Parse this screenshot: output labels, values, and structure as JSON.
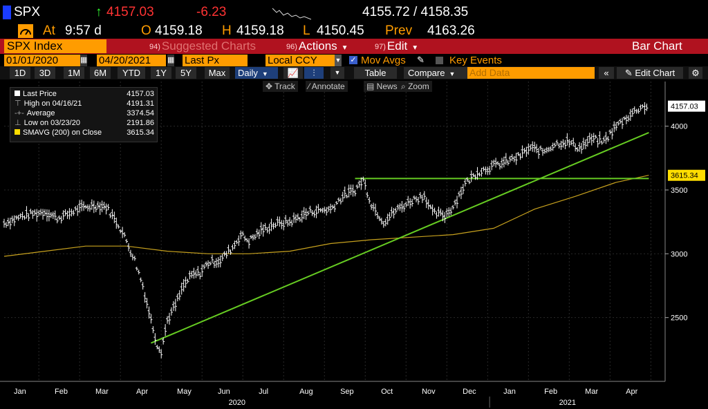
{
  "header": {
    "ticker": "SPX",
    "arrow": "↑",
    "last": "4157.03",
    "change": "-6.23",
    "bid_ask": "4155.72 / 4158.35",
    "time_label": "At",
    "time": "9:57 d",
    "open_label": "O",
    "open": "4159.18",
    "high_label": "H",
    "high": "4159.18",
    "low_label": "L",
    "low": "4150.45",
    "prev_label": "Prev",
    "prev": "4163.26"
  },
  "funcbar": {
    "security": "SPX Index",
    "suggested_num": "94)",
    "suggested": "Suggested Charts",
    "actions_num": "96)",
    "actions": "Actions",
    "edit_num": "97)",
    "edit": "Edit",
    "chart_type": "Bar Chart"
  },
  "params": {
    "start_date": "01/01/2020",
    "end_date": "04/20/2021",
    "price_field": "Last Px",
    "currency": "Local CCY",
    "mov_avgs": "Mov Avgs",
    "key_events": "Key Events"
  },
  "toolbar": {
    "periods": [
      "1D",
      "3D",
      "1M",
      "6M",
      "YTD",
      "1Y",
      "5Y",
      "Max"
    ],
    "frequency": "Daily",
    "table": "Table",
    "compare": "Compare",
    "add_data_placeholder": "Add Data",
    "edit_chart": "Edit Chart"
  },
  "tools": {
    "track": "Track",
    "annotate": "Annotate",
    "news": "News",
    "zoom": "Zoom"
  },
  "legend": [
    {
      "label": "Last Price",
      "value": "4157.03"
    },
    {
      "label": "High on 04/16/21",
      "value": "4191.31"
    },
    {
      "label": "Average",
      "value": "3374.54"
    },
    {
      "label": "Low on 03/23/20",
      "value": "2191.86"
    },
    {
      "label": "SMAVG (200)  on Close",
      "value": "3615.34"
    }
  ],
  "colors": {
    "price": "#ffffff",
    "sma": "#c8a21e",
    "trendline": "#66cc22",
    "orange": "#ff9c00",
    "red": "#b0121f",
    "change_red": "#ff3333",
    "up_green": "#33ff33"
  },
  "chart_data": {
    "type": "line",
    "title": "",
    "xlabel": "",
    "ylabel": "",
    "ylim": [
      2000,
      4350
    ],
    "y_ticks": [
      "2500",
      "3000",
      "3500",
      "4000"
    ],
    "x_months": [
      "Jan",
      "Feb",
      "Mar",
      "Apr",
      "May",
      "Jun",
      "Jul",
      "Aug",
      "Sep",
      "Oct",
      "Nov",
      "Dec",
      "Jan",
      "Feb",
      "Mar",
      "Apr"
    ],
    "x_years": [
      "2020",
      "2021"
    ],
    "last_price_tag": "4157.03",
    "sma_tag": "3615.34",
    "series": [
      {
        "name": "Last Price",
        "points": [
          [
            0,
            3240
          ],
          [
            0.5,
            3300
          ],
          [
            1,
            3330
          ],
          [
            1.3,
            3280
          ],
          [
            1.5,
            3300
          ],
          [
            1.8,
            3350
          ],
          [
            2.2,
            3380
          ],
          [
            2.5,
            3370
          ],
          [
            2.8,
            3230
          ],
          [
            3.0,
            3100
          ],
          [
            3.2,
            2950
          ],
          [
            3.4,
            2750
          ],
          [
            3.6,
            2480
          ],
          [
            3.75,
            2290
          ],
          [
            3.85,
            2240
          ],
          [
            4.0,
            2480
          ],
          [
            4.2,
            2600
          ],
          [
            4.4,
            2750
          ],
          [
            4.6,
            2830
          ],
          [
            4.8,
            2850
          ],
          [
            5.0,
            2930
          ],
          [
            5.3,
            2950
          ],
          [
            5.6,
            3050
          ],
          [
            5.8,
            3150
          ],
          [
            6.0,
            3100
          ],
          [
            6.3,
            3180
          ],
          [
            6.6,
            3230
          ],
          [
            7.0,
            3250
          ],
          [
            7.5,
            3330
          ],
          [
            8.0,
            3350
          ],
          [
            8.3,
            3450
          ],
          [
            8.6,
            3500
          ],
          [
            8.8,
            3580
          ],
          [
            9.0,
            3390
          ],
          [
            9.3,
            3250
          ],
          [
            9.6,
            3340
          ],
          [
            9.8,
            3380
          ],
          [
            10.0,
            3420
          ],
          [
            10.3,
            3460
          ],
          [
            10.5,
            3320
          ],
          [
            10.8,
            3300
          ],
          [
            11.0,
            3370
          ],
          [
            11.3,
            3550
          ],
          [
            11.6,
            3640
          ],
          [
            12.0,
            3690
          ],
          [
            12.3,
            3720
          ],
          [
            12.6,
            3760
          ],
          [
            12.9,
            3830
          ],
          [
            13.2,
            3800
          ],
          [
            13.5,
            3860
          ],
          [
            13.8,
            3880
          ],
          [
            14.1,
            3830
          ],
          [
            14.4,
            3900
          ],
          [
            14.7,
            3880
          ],
          [
            15.0,
            4000
          ],
          [
            15.3,
            4080
          ],
          [
            15.6,
            4150
          ],
          [
            15.8,
            4157
          ]
        ]
      },
      {
        "name": "SMAVG (200)",
        "points": [
          [
            0,
            2980
          ],
          [
            1,
            3020
          ],
          [
            2,
            3060
          ],
          [
            3,
            3060
          ],
          [
            4,
            3020
          ],
          [
            5,
            3000
          ],
          [
            6,
            3000
          ],
          [
            7,
            3020
          ],
          [
            8,
            3080
          ],
          [
            9,
            3110
          ],
          [
            10,
            3130
          ],
          [
            11,
            3150
          ],
          [
            12,
            3200
          ],
          [
            13,
            3350
          ],
          [
            14,
            3450
          ],
          [
            15,
            3560
          ],
          [
            15.8,
            3615
          ]
        ]
      },
      {
        "name": "Trend line",
        "points": [
          [
            3.6,
            2300
          ],
          [
            15.8,
            3950
          ]
        ]
      },
      {
        "name": "Resistance",
        "points": [
          [
            8.6,
            3590
          ],
          [
            15.8,
            3590
          ]
        ]
      }
    ]
  }
}
